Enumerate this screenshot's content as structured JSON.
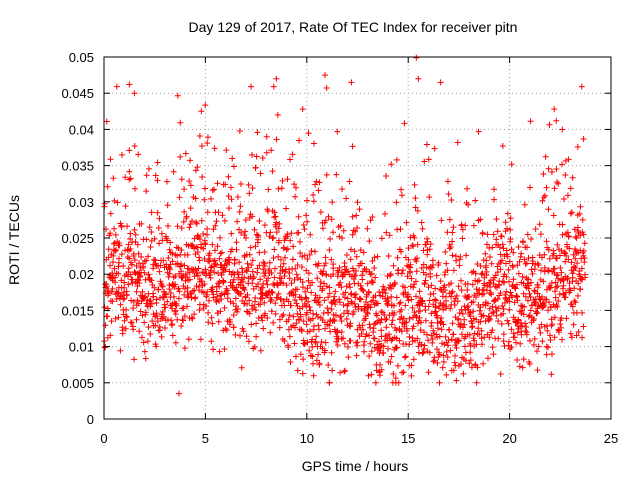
{
  "chart_data": {
    "type": "scatter",
    "title": "Day 129 of 2017, Rate Of TEC Index for receiver pitn",
    "xlabel": "GPS time / hours",
    "ylabel": "ROTI / TECUs",
    "xlim": [
      0,
      25
    ],
    "ylim": [
      0,
      0.05
    ],
    "grid": true,
    "marker": "+",
    "marker_color": "#ff0000",
    "x_ticks": [
      0,
      5,
      10,
      15,
      20,
      25
    ],
    "x_tick_labels": [
      "0",
      "5",
      "10",
      "15",
      "20",
      "25"
    ],
    "y_ticks": [
      0,
      0.005,
      0.01,
      0.015,
      0.02,
      0.025,
      0.03,
      0.035,
      0.04,
      0.045,
      0.05
    ],
    "y_tick_labels": [
      "0",
      "0.005",
      "0.01",
      "0.015",
      "0.02",
      "0.025",
      "0.03",
      "0.035",
      "0.04",
      "0.045",
      "0.05"
    ],
    "series": [
      {
        "name": "ROTI",
        "x_range": [
          0,
          23.75
        ],
        "sample_interval_hours": 0.05,
        "typical_band": [
          0.01,
          0.025
        ],
        "min_observed": 0.0035,
        "max_observed": 0.0499,
        "notable_points": [
          {
            "x": 1.25,
            "y": 0.0462
          },
          {
            "x": 1.5,
            "y": 0.045
          },
          {
            "x": 3.7,
            "y": 0.0035
          },
          {
            "x": 4.8,
            "y": 0.0425
          },
          {
            "x": 8.5,
            "y": 0.047
          },
          {
            "x": 9.8,
            "y": 0.0428
          },
          {
            "x": 10.9,
            "y": 0.0475
          },
          {
            "x": 12.2,
            "y": 0.0465
          },
          {
            "x": 15.4,
            "y": 0.0499
          },
          {
            "x": 15.5,
            "y": 0.047
          },
          {
            "x": 16.6,
            "y": 0.0465
          },
          {
            "x": 22.2,
            "y": 0.0428
          },
          {
            "x": 22.3,
            "y": 0.0412
          }
        ]
      }
    ]
  }
}
